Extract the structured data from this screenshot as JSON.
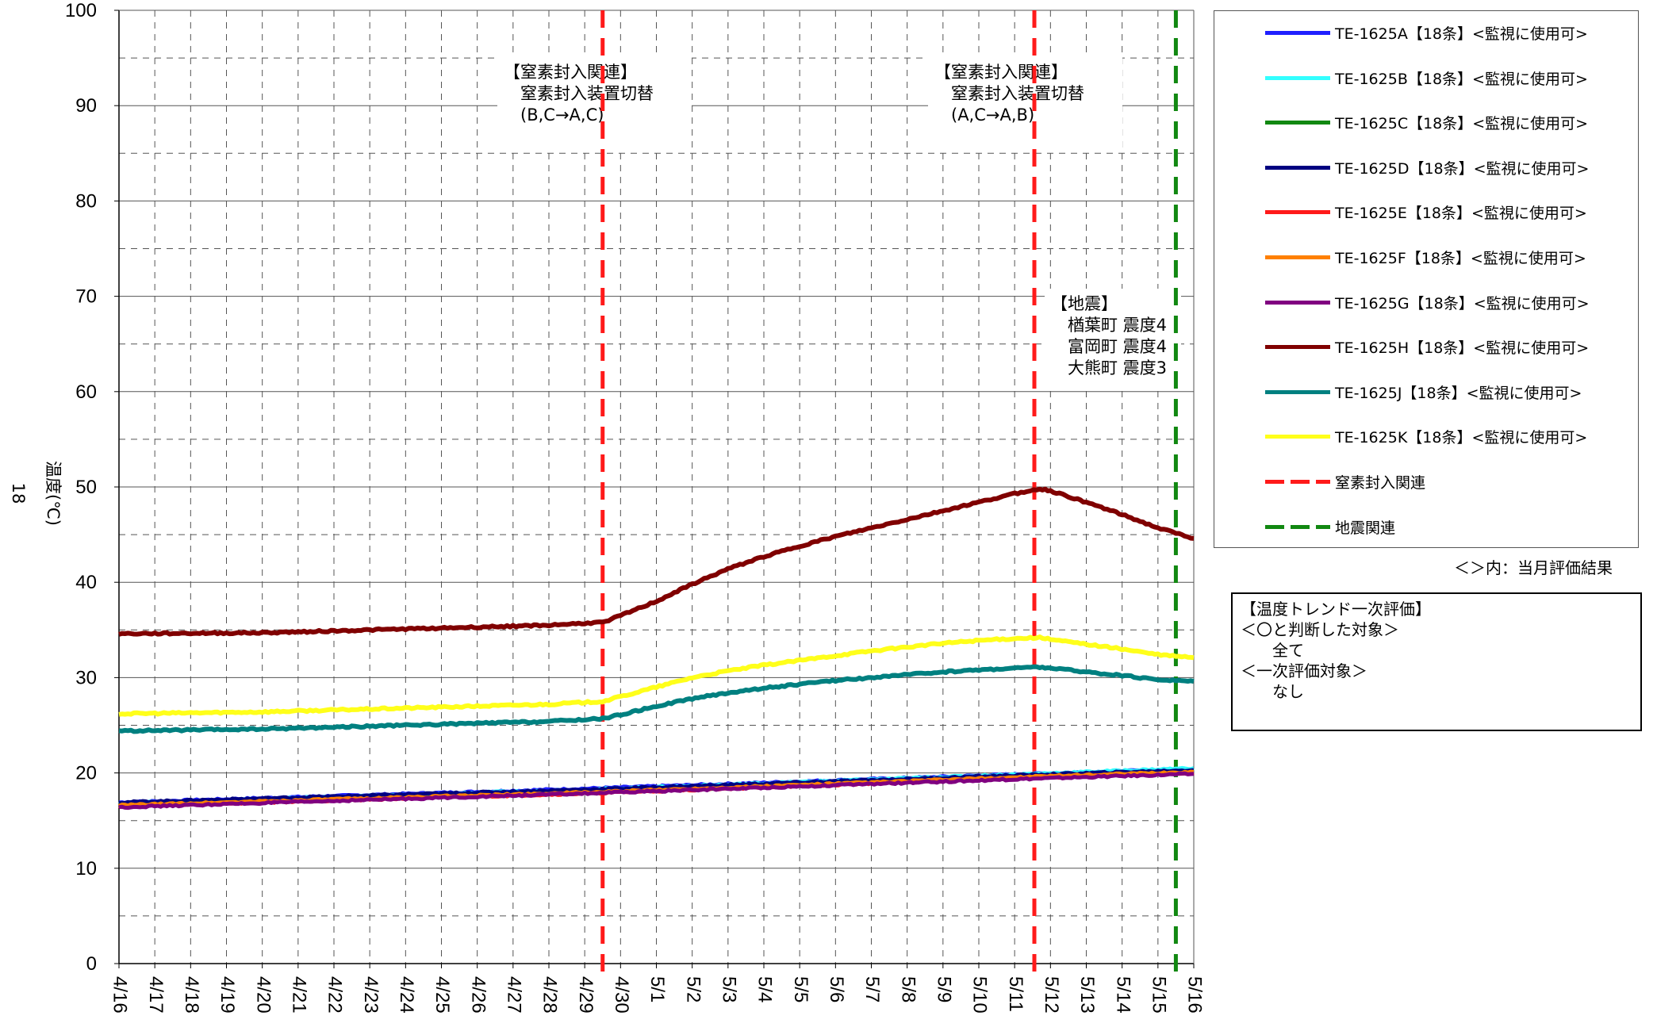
{
  "chart_data": {
    "type": "line",
    "ylabel": "温度(℃)",
    "side_label": "18",
    "ylim": [
      0,
      100
    ],
    "yticks": [
      "0",
      "10",
      "20",
      "30",
      "40",
      "50",
      "60",
      "70",
      "80",
      "90",
      "100"
    ],
    "x": [
      "4/16",
      "4/17",
      "4/18",
      "4/19",
      "4/20",
      "4/21",
      "4/22",
      "4/23",
      "4/24",
      "4/25",
      "4/26",
      "4/27",
      "4/28",
      "4/29",
      "4/30",
      "5/1",
      "5/2",
      "5/3",
      "5/4",
      "5/5",
      "5/6",
      "5/7",
      "5/8",
      "5/9",
      "5/10",
      "5/11",
      "5/12",
      "5/13",
      "5/14",
      "5/15",
      "5/16"
    ],
    "grid": true,
    "series": [
      {
        "name": "TE-1625A【18条】<監視に使用可>",
        "color": "#1f1fff",
        "points": [
          [
            0,
            16.9
          ],
          [
            13.5,
            18.4
          ],
          [
            25.5,
            19.9
          ],
          [
            30,
            20.4
          ]
        ]
      },
      {
        "name": "TE-1625B【18条】<監視に使用可>",
        "color": "#33ffff",
        "points": [
          [
            0,
            16.8
          ],
          [
            13.5,
            18.3
          ],
          [
            25.5,
            19.9
          ],
          [
            30,
            20.5
          ]
        ]
      },
      {
        "name": "TE-1625C【18条】<監視に使用可>",
        "color": "#118811",
        "points": [
          [
            0,
            16.6
          ],
          [
            13.5,
            18.0
          ],
          [
            25.5,
            19.6
          ],
          [
            30,
            20.1
          ]
        ]
      },
      {
        "name": "TE-1625D【18条】<監視に使用可>",
        "color": "#000080",
        "points": [
          [
            0,
            16.9
          ],
          [
            13.5,
            18.3
          ],
          [
            25.5,
            19.8
          ],
          [
            30,
            20.3
          ]
        ]
      },
      {
        "name": "TE-1625E【18条】<監視に使用可>",
        "color": "#ff1a1a",
        "points": [
          [
            0,
            16.5
          ],
          [
            13.5,
            17.9
          ],
          [
            25.5,
            19.5
          ],
          [
            30,
            20.0
          ]
        ]
      },
      {
        "name": "TE-1625F【18条】<監視に使用可>",
        "color": "#ff8000",
        "points": [
          [
            0,
            16.6
          ],
          [
            13.5,
            18.0
          ],
          [
            25.5,
            19.6
          ],
          [
            30,
            20.1
          ]
        ]
      },
      {
        "name": "TE-1625G【18条】<監視に使用可>",
        "color": "#800080",
        "points": [
          [
            0,
            16.4
          ],
          [
            13.5,
            17.9
          ],
          [
            25.5,
            19.4
          ],
          [
            30,
            19.9
          ]
        ]
      },
      {
        "name": "TE-1625H【18条】<監視に使用可>",
        "color": "#800000",
        "points": [
          [
            0,
            34.6
          ],
          [
            4,
            34.7
          ],
          [
            8,
            35.1
          ],
          [
            12,
            35.5
          ],
          [
            13.5,
            35.8
          ],
          [
            14,
            36.5
          ],
          [
            15,
            38.0
          ],
          [
            16,
            39.8
          ],
          [
            17,
            41.4
          ],
          [
            18,
            42.7
          ],
          [
            19,
            43.8
          ],
          [
            20,
            44.8
          ],
          [
            21,
            45.7
          ],
          [
            22,
            46.6
          ],
          [
            23,
            47.5
          ],
          [
            24,
            48.4
          ],
          [
            25,
            49.3
          ],
          [
            25.7,
            49.8
          ],
          [
            26,
            49.6
          ],
          [
            27,
            48.4
          ],
          [
            28,
            47.1
          ],
          [
            29,
            45.7
          ],
          [
            30,
            44.6
          ]
        ]
      },
      {
        "name": "TE-1625J【18条】<監視に使用可>",
        "color": "#008080",
        "points": [
          [
            0,
            24.4
          ],
          [
            4,
            24.6
          ],
          [
            8,
            25.0
          ],
          [
            12,
            25.4
          ],
          [
            13.5,
            25.7
          ],
          [
            14,
            26.1
          ],
          [
            15,
            27.0
          ],
          [
            16,
            27.8
          ],
          [
            17,
            28.4
          ],
          [
            18,
            28.9
          ],
          [
            19,
            29.3
          ],
          [
            20,
            29.7
          ],
          [
            21,
            30.0
          ],
          [
            22,
            30.3
          ],
          [
            23,
            30.6
          ],
          [
            24,
            30.8
          ],
          [
            25,
            31.0
          ],
          [
            25.7,
            31.1
          ],
          [
            26,
            31.0
          ],
          [
            27,
            30.6
          ],
          [
            28,
            30.2
          ],
          [
            29,
            29.8
          ],
          [
            30,
            29.6
          ]
        ]
      },
      {
        "name": "TE-1625K【18条】<監視に使用可>",
        "color": "#ffff1a",
        "points": [
          [
            0,
            26.2
          ],
          [
            4,
            26.4
          ],
          [
            8,
            26.8
          ],
          [
            12,
            27.2
          ],
          [
            13.5,
            27.5
          ],
          [
            14,
            28.0
          ],
          [
            15,
            29.0
          ],
          [
            16,
            30.0
          ],
          [
            17,
            30.7
          ],
          [
            18,
            31.3
          ],
          [
            19,
            31.8
          ],
          [
            20,
            32.3
          ],
          [
            21,
            32.8
          ],
          [
            22,
            33.2
          ],
          [
            23,
            33.6
          ],
          [
            24,
            33.9
          ],
          [
            25,
            34.1
          ],
          [
            25.7,
            34.2
          ],
          [
            26,
            34.0
          ],
          [
            27,
            33.5
          ],
          [
            28,
            33.0
          ],
          [
            29,
            32.4
          ],
          [
            30,
            32.1
          ]
        ]
      }
    ],
    "events": [
      {
        "name": "窒素封入関連",
        "color": "#ff1a1a",
        "x": 13.5
      },
      {
        "name": "窒素封入関連",
        "color": "#ff1a1a",
        "x": 25.55
      },
      {
        "name": "地震関連",
        "color": "#118811",
        "x": 29.5
      }
    ],
    "annotations": [
      {
        "lines": [
          "【窒素封入関連】",
          "　窒素封入装置切替",
          "　(B,C→A,C)"
        ]
      },
      {
        "lines": [
          "【窒素封入関連】",
          "　窒素封入装置切替",
          "　(A,C→A,B)"
        ]
      },
      {
        "lines": [
          "【地震】",
          "　楢葉町 震度4",
          "　富岡町 震度4",
          "　大熊町 震度3"
        ]
      }
    ]
  },
  "legend": {
    "items": [
      {
        "label": "TE-1625A【18条】<監視に使用可>",
        "color": "#1f1fff",
        "style": "solid"
      },
      {
        "label": "TE-1625B【18条】<監視に使用可>",
        "color": "#33ffff",
        "style": "solid"
      },
      {
        "label": "TE-1625C【18条】<監視に使用可>",
        "color": "#118811",
        "style": "solid"
      },
      {
        "label": "TE-1625D【18条】<監視に使用可>",
        "color": "#000080",
        "style": "solid"
      },
      {
        "label": "TE-1625E【18条】<監視に使用可>",
        "color": "#ff1a1a",
        "style": "solid"
      },
      {
        "label": "TE-1625F【18条】<監視に使用可>",
        "color": "#ff8000",
        "style": "solid"
      },
      {
        "label": "TE-1625G【18条】<監視に使用可>",
        "color": "#800080",
        "style": "solid"
      },
      {
        "label": "TE-1625H【18条】<監視に使用可>",
        "color": "#800000",
        "style": "solid"
      },
      {
        "label": "TE-1625J【18条】<監視に使用可>",
        "color": "#008080",
        "style": "solid"
      },
      {
        "label": "TE-1625K【18条】<監視に使用可>",
        "color": "#ffff1a",
        "style": "solid"
      },
      {
        "label": "窒素封入関連",
        "color": "#ff1a1a",
        "style": "dashed"
      },
      {
        "label": "地震関連",
        "color": "#118811",
        "style": "dashed"
      }
    ]
  },
  "note": "＜＞内：当月評価結果",
  "evaluation": {
    "lines": [
      "【温度トレンド一次評価】",
      "＜〇と判断した対象＞",
      "　　全て",
      "＜一次評価対象＞",
      "　　なし"
    ]
  }
}
